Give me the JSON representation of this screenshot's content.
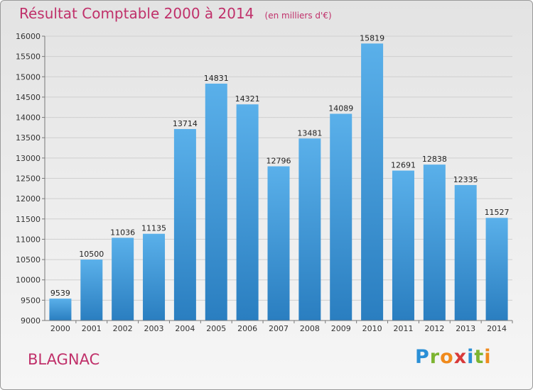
{
  "title": "Résultat Comptable 2000 à 2014",
  "subtitle": "(en milliers d'€)",
  "place": "BLAGNAC",
  "logo": {
    "letters": [
      "P",
      "r",
      "o",
      "x",
      "i",
      "t",
      "i"
    ],
    "colors": [
      "#2a8fd6",
      "#7cb431",
      "#f08a1c",
      "#d83a3a",
      "#2a8fd6",
      "#7cb431",
      "#f08a1c"
    ]
  },
  "colors": {
    "accent": "#c0306a",
    "bar_top": "#5ab0ea",
    "bar_bottom": "#2a7ec0"
  },
  "chart_data": {
    "type": "bar",
    "title": "Résultat Comptable 2000 à 2014",
    "subtitle": "(en milliers d'€)",
    "xlabel": "",
    "ylabel": "",
    "categories": [
      "2000",
      "2001",
      "2002",
      "2003",
      "2004",
      "2005",
      "2006",
      "2007",
      "2008",
      "2009",
      "2010",
      "2011",
      "2012",
      "2013",
      "2014"
    ],
    "values": [
      9539,
      10500,
      11036,
      11135,
      13714,
      14831,
      14321,
      12796,
      13481,
      14089,
      15819,
      12691,
      12838,
      12335,
      11527
    ],
    "ylim": [
      9000,
      16000
    ],
    "yticks": [
      9000,
      9500,
      10000,
      10500,
      11000,
      11500,
      12000,
      12500,
      13000,
      13500,
      14000,
      14500,
      15000,
      15500,
      16000
    ],
    "grid": true,
    "data_labels": true
  }
}
